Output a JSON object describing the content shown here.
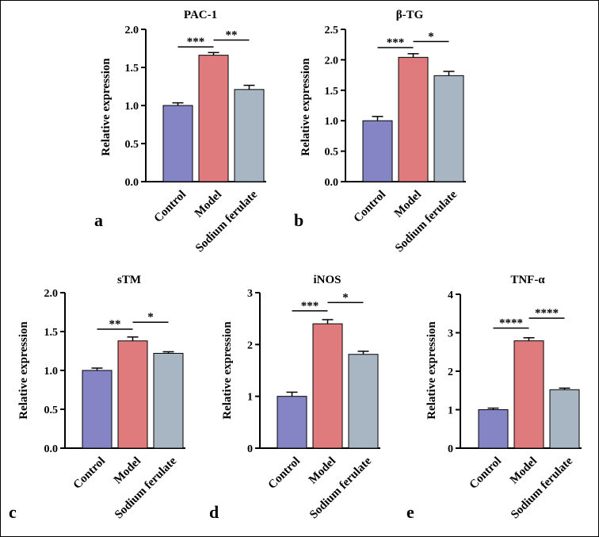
{
  "chart_data": [
    {
      "type": "bar",
      "panel_label": "a",
      "title": "PAC-1",
      "ylabel": "Relative expression",
      "categories": [
        "Control",
        "Model",
        "Sodium ferulate"
      ],
      "values": [
        1.0,
        1.66,
        1.21
      ],
      "errors": [
        0.035,
        0.035,
        0.055
      ],
      "ylim": [
        0,
        2.0
      ],
      "yticks": [
        0,
        0.5,
        1.0,
        1.5,
        2.0
      ],
      "ytick_labels": [
        "0.0",
        "0.5",
        "1.0",
        "1.5",
        "2.0"
      ],
      "colors": [
        "#8584c4",
        "#e07b7d",
        "#a8b6c3"
      ],
      "significance": [
        {
          "from": 0,
          "to": 1,
          "label": "***",
          "y": 1.77
        },
        {
          "from": 1,
          "to": 2,
          "label": "**",
          "y": 1.86
        }
      ]
    },
    {
      "type": "bar",
      "panel_label": "b",
      "title": "β-TG",
      "ylabel": "Relative expression",
      "categories": [
        "Control",
        "Model",
        "Sodium ferulate"
      ],
      "values": [
        1.0,
        2.04,
        1.74
      ],
      "errors": [
        0.07,
        0.06,
        0.07
      ],
      "ylim": [
        0,
        2.5
      ],
      "yticks": [
        0,
        0.5,
        1.0,
        1.5,
        2.0,
        2.5
      ],
      "ytick_labels": [
        "0.0",
        "0.5",
        "1.0",
        "1.5",
        "2.0",
        "2.5"
      ],
      "colors": [
        "#8584c4",
        "#e07b7d",
        "#a8b6c3"
      ],
      "significance": [
        {
          "from": 0,
          "to": 1,
          "label": "***",
          "y": 2.2
        },
        {
          "from": 1,
          "to": 2,
          "label": "*",
          "y": 2.3
        }
      ]
    },
    {
      "type": "bar",
      "panel_label": "c",
      "title": "sTM",
      "ylabel": "Relative expression",
      "categories": [
        "Control",
        "Model",
        "Sodium ferulate"
      ],
      "values": [
        1.0,
        1.38,
        1.22
      ],
      "errors": [
        0.03,
        0.05,
        0.02
      ],
      "ylim": [
        0,
        2.0
      ],
      "yticks": [
        0,
        0.5,
        1.0,
        1.5,
        2.0
      ],
      "ytick_labels": [
        "0.0",
        "0.5",
        "1.0",
        "1.5",
        "2.0"
      ],
      "colors": [
        "#8584c4",
        "#e07b7d",
        "#a8b6c3"
      ],
      "significance": [
        {
          "from": 0,
          "to": 1,
          "label": "**",
          "y": 1.53
        },
        {
          "from": 1,
          "to": 2,
          "label": "*",
          "y": 1.62
        }
      ]
    },
    {
      "type": "bar",
      "panel_label": "d",
      "title": "iNOS",
      "ylabel": "Relative expression",
      "categories": [
        "Control",
        "Model",
        "Sodium ferulate"
      ],
      "values": [
        1.0,
        2.4,
        1.81
      ],
      "errors": [
        0.08,
        0.08,
        0.06
      ],
      "ylim": [
        0,
        3
      ],
      "yticks": [
        0,
        1,
        2,
        3
      ],
      "ytick_labels": [
        "0",
        "1",
        "2",
        "3"
      ],
      "colors": [
        "#8584c4",
        "#e07b7d",
        "#a8b6c3"
      ],
      "significance": [
        {
          "from": 0,
          "to": 1,
          "label": "***",
          "y": 2.65
        },
        {
          "from": 1,
          "to": 2,
          "label": "*",
          "y": 2.81
        }
      ]
    },
    {
      "type": "bar",
      "panel_label": "e",
      "title": "TNF-α",
      "ylabel": "Relative expression",
      "categories": [
        "Control",
        "Model",
        "Sodium ferulate"
      ],
      "values": [
        1.0,
        2.79,
        1.52
      ],
      "errors": [
        0.04,
        0.08,
        0.04
      ],
      "ylim": [
        0,
        4
      ],
      "yticks": [
        0,
        1,
        2,
        3,
        4
      ],
      "ytick_labels": [
        "0",
        "1",
        "2",
        "3",
        "4"
      ],
      "colors": [
        "#8584c4",
        "#e07b7d",
        "#a8b6c3"
      ],
      "significance": [
        {
          "from": 0,
          "to": 1,
          "label": "****",
          "y": 3.12
        },
        {
          "from": 1,
          "to": 2,
          "label": "****",
          "y": 3.38
        }
      ]
    }
  ]
}
